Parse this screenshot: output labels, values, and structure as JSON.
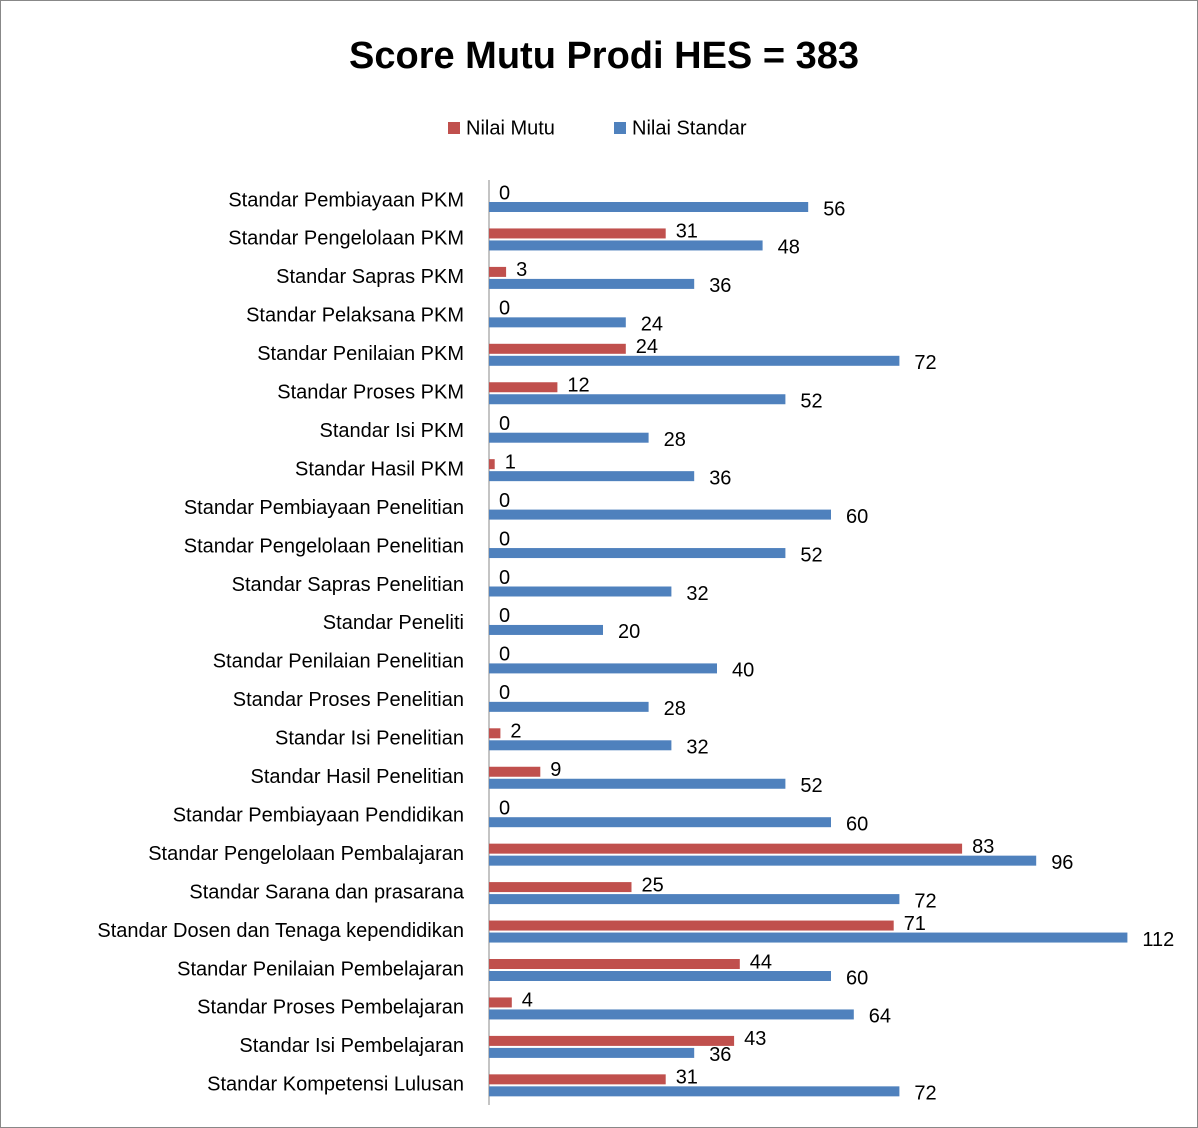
{
  "chart_data": {
    "type": "bar",
    "orientation": "horizontal",
    "title": "Score Mutu Prodi HES = 383",
    "categories": [
      "Standar Pembiayaan PKM",
      "Standar Pengelolaan PKM",
      "Standar Sapras PKM",
      "Standar Pelaksana PKM",
      "Standar Penilaian PKM",
      "Standar Proses PKM",
      "Standar Isi PKM",
      "Standar Hasil PKM",
      "Standar Pembiayaan Penelitian",
      "Standar Pengelolaan Penelitian",
      "Standar Sapras Penelitian",
      "Standar Peneliti",
      "Standar Penilaian Penelitian",
      "Standar Proses Penelitian",
      "Standar Isi Penelitian",
      "Standar Hasil Penelitian",
      "Standar Pembiayaan Pendidikan",
      "Standar Pengelolaan Pembalajaran",
      "Standar Sarana dan prasarana",
      "Standar Dosen dan Tenaga kependidikan",
      "Standar Penilaian Pembelajaran",
      "Standar Proses Pembelajaran",
      "Standar Isi Pembelajaran",
      "Standar Kompetensi Lulusan"
    ],
    "series": [
      {
        "name": "Nilai Mutu",
        "color": "#c0504d",
        "values": [
          0,
          31,
          3,
          0,
          24,
          12,
          0,
          1,
          0,
          0,
          0,
          0,
          0,
          0,
          2,
          9,
          0,
          83,
          25,
          71,
          44,
          4,
          43,
          31
        ]
      },
      {
        "name": "Nilai Standar",
        "color": "#4f81bd",
        "values": [
          56,
          48,
          36,
          24,
          72,
          52,
          28,
          36,
          60,
          52,
          32,
          20,
          40,
          28,
          32,
          52,
          60,
          96,
          72,
          112,
          60,
          64,
          36,
          72
        ]
      }
    ],
    "legend": "top"
  }
}
